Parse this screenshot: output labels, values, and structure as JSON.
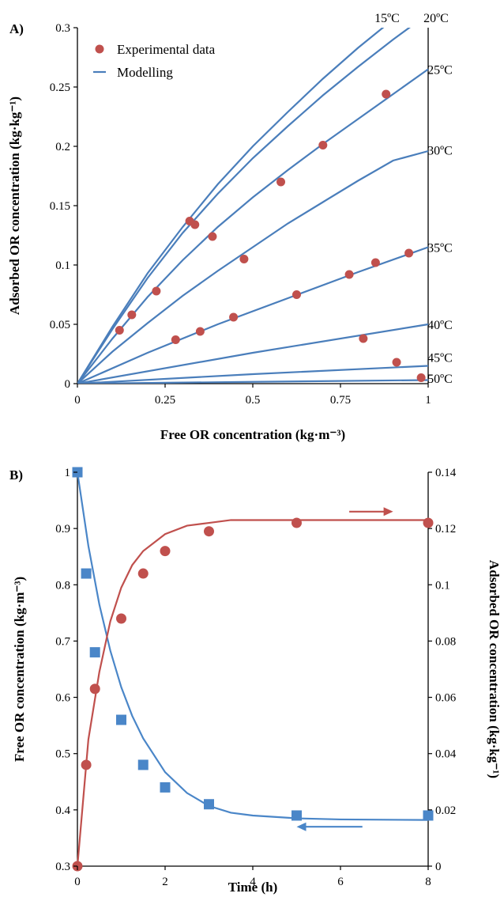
{
  "chart_data": [
    {
      "panel_label": "A)",
      "type": "scatter",
      "xlabel": "Free OR concentration (kg·m⁻³)",
      "ylabel": "Adsorbed OR concentration (kg·kg⁻¹)",
      "xlim": [
        0,
        1
      ],
      "ylim": [
        0,
        0.3
      ],
      "x_ticks": [
        0,
        0.25,
        0.5,
        0.75,
        1
      ],
      "x_tick_labels": [
        "0",
        "0.25",
        "0.5",
        "0.75",
        "1"
      ],
      "y_ticks": [
        0,
        0.05,
        0.1,
        0.15,
        0.2,
        0.25,
        0.3
      ],
      "y_tick_labels": [
        "0",
        "0.05",
        "0.1",
        "0.15",
        "0.2",
        "0.25",
        "0.3"
      ],
      "grid": false,
      "legend": {
        "placement": "top-left",
        "entries": [
          {
            "label": "Experimental data",
            "kind": "marker",
            "color": "#c0504d"
          },
          {
            "label": "Modelling",
            "kind": "line",
            "color": "#4a7ebb"
          }
        ]
      },
      "model_curves": [
        {
          "temperature": "15ºC",
          "x": [
            0,
            0.1,
            0.2,
            0.3,
            0.4,
            0.5,
            0.6,
            0.7,
            0.8,
            0.9
          ],
          "y": [
            0,
            0.048,
            0.093,
            0.132,
            0.168,
            0.2,
            0.229,
            0.257,
            0.283,
            0.307
          ]
        },
        {
          "temperature": "20ºC",
          "x": [
            0,
            0.1,
            0.2,
            0.3,
            0.4,
            0.5,
            0.6,
            0.7,
            0.8,
            0.9,
            0.96
          ],
          "y": [
            0,
            0.046,
            0.089,
            0.127,
            0.16,
            0.19,
            0.217,
            0.243,
            0.267,
            0.29,
            0.303
          ]
        },
        {
          "temperature": "25ºC",
          "x": [
            0,
            0.1,
            0.2,
            0.3,
            0.4,
            0.5,
            0.6,
            0.7,
            0.8,
            0.9,
            1
          ],
          "y": [
            0,
            0.038,
            0.073,
            0.104,
            0.132,
            0.157,
            0.18,
            0.202,
            0.223,
            0.244,
            0.265
          ]
        },
        {
          "temperature": "30ºC",
          "x": [
            0,
            0.1,
            0.2,
            0.3,
            0.4,
            0.5,
            0.6,
            0.7,
            0.8,
            0.9,
            1
          ],
          "y": [
            0,
            0.027,
            0.051,
            0.074,
            0.095,
            0.115,
            0.135,
            0.153,
            0.171,
            0.188,
            0.196
          ]
        },
        {
          "temperature": "35ºC",
          "x": [
            0,
            0.2,
            0.4,
            0.6,
            0.8,
            1
          ],
          "y": [
            0,
            0.026,
            0.05,
            0.072,
            0.094,
            0.115
          ]
        },
        {
          "temperature": "40ºC",
          "x": [
            0,
            0.5,
            1
          ],
          "y": [
            0,
            0.026,
            0.05
          ]
        },
        {
          "temperature": "45ºC",
          "x": [
            0,
            0.5,
            1
          ],
          "y": [
            0,
            0.008,
            0.015
          ]
        },
        {
          "temperature": "50ºC",
          "x": [
            0,
            0.5,
            1
          ],
          "y": [
            0,
            0.0015,
            0.003
          ]
        }
      ],
      "temperature_labels": [
        {
          "text": "15ºC",
          "y": 0.31
        },
        {
          "text": "20ºC",
          "y": 0.31
        },
        {
          "text": "25ºC",
          "y": 0.265
        },
        {
          "text": "30ºC",
          "y": 0.197
        },
        {
          "text": "35ºC",
          "y": 0.115
        },
        {
          "text": "40ºC",
          "y": 0.05
        },
        {
          "text": "45ºC",
          "y": 0.017
        },
        {
          "text": "50ºC",
          "y": 0.002
        }
      ],
      "experimental_data": {
        "x": [
          0.12,
          0.155,
          0.225,
          0.32,
          0.335,
          0.385,
          0.475,
          0.58,
          0.7,
          0.88,
          0.28,
          0.35,
          0.445,
          0.625,
          0.775,
          0.85,
          0.945,
          0.815,
          0.91,
          0.98
        ],
        "y": [
          0.045,
          0.058,
          0.078,
          0.137,
          0.134,
          0.124,
          0.105,
          0.17,
          0.201,
          0.244,
          0.037,
          0.044,
          0.056,
          0.075,
          0.092,
          0.102,
          0.11,
          0.038,
          0.018,
          0.005
        ]
      }
    },
    {
      "panel_label": "B)",
      "type": "scatter",
      "xlabel": "Time (h)",
      "ylabel_left": "Free OR concentration (kg·m⁻³)",
      "ylabel_right": "Adsorbed OR concentration (kg·kg⁻¹)",
      "xlim": [
        0,
        8
      ],
      "ylim_left": [
        0.3,
        1
      ],
      "ylim_right": [
        0,
        0.14
      ],
      "x_ticks": [
        0,
        2,
        4,
        6,
        8
      ],
      "x_tick_labels": [
        "0",
        "2",
        "4",
        "6",
        "8"
      ],
      "y_ticks_left": [
        0.3,
        0.4,
        0.5,
        0.6,
        0.7,
        0.8,
        0.9,
        1
      ],
      "y_tick_labels_left": [
        "0.3",
        "0.4",
        "0.5",
        "0.6",
        "0.7",
        "0.8",
        "0.9",
        "1"
      ],
      "y_ticks_right": [
        0,
        0.02,
        0.04,
        0.06,
        0.08,
        0.1,
        0.12,
        0.14
      ],
      "y_tick_labels_right": [
        "0",
        "0.02",
        "0.04",
        "0.06",
        "0.08",
        "0.1",
        "0.12",
        "0.14"
      ],
      "grid": false,
      "series": [
        {
          "axis": "left",
          "marker": "square",
          "color": "#4a86c8",
          "x": [
            0,
            0.2,
            0.4,
            1,
            1.5,
            2,
            3,
            5,
            8
          ],
          "y": [
            1.0,
            0.82,
            0.68,
            0.56,
            0.48,
            0.44,
            0.41,
            0.39,
            0.39
          ],
          "model_x": [
            0,
            0.25,
            0.5,
            0.75,
            1,
            1.25,
            1.5,
            2,
            2.5,
            3,
            3.5,
            4,
            5,
            6,
            8
          ],
          "model_y": [
            1.0,
            0.869,
            0.765,
            0.683,
            0.618,
            0.567,
            0.527,
            0.467,
            0.43,
            0.407,
            0.395,
            0.39,
            0.385,
            0.383,
            0.382
          ]
        },
        {
          "axis": "right",
          "marker": "circle",
          "color": "#c0504d",
          "x": [
            0,
            0.2,
            0.4,
            1,
            1.5,
            2,
            3,
            5,
            8
          ],
          "y": [
            0,
            0.036,
            0.063,
            0.088,
            0.104,
            0.112,
            0.119,
            0.122,
            0.122
          ],
          "model_x": [
            0,
            0.25,
            0.5,
            0.75,
            1,
            1.25,
            1.5,
            2,
            2.5,
            3,
            3.5,
            4,
            5,
            6,
            8
          ],
          "model_y": [
            0,
            0.045,
            0.069,
            0.087,
            0.099,
            0.107,
            0.112,
            0.118,
            0.121,
            0.122,
            0.123,
            0.123,
            0.123,
            0.123,
            0.123
          ]
        }
      ],
      "annotations": [
        {
          "kind": "arrow",
          "direction": "right",
          "color": "#c0504d",
          "x_start": 6.2,
          "x_end": 7.2,
          "y_right": 0.126
        },
        {
          "kind": "arrow",
          "direction": "left",
          "color": "#4a86c8",
          "x_start": 6.5,
          "x_end": 5.0,
          "y_left": 0.37
        }
      ]
    }
  ]
}
